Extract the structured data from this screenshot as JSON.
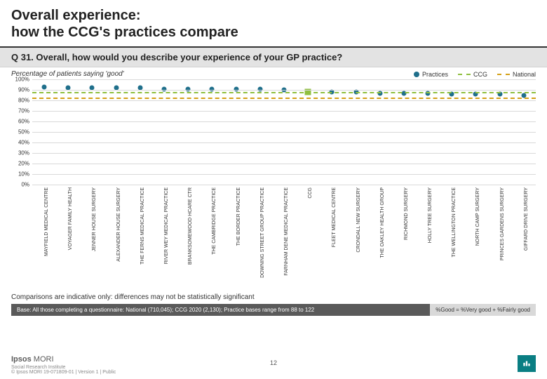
{
  "title": {
    "line1": "Overall experience:",
    "line2": "how the CCG's practices compare"
  },
  "question": "Q 31. Overall, how would you describe your experience of your GP practice?",
  "subheader": "Percentage of patients saying 'good'",
  "legend": {
    "practices": {
      "label": "Practices",
      "color": "#1f6f8b"
    },
    "ccg": {
      "label": "CCG",
      "color": "#8fbf3f"
    },
    "national": {
      "label": "National",
      "color": "#d4a017"
    }
  },
  "chart": {
    "type": "scatter",
    "ylim": [
      0,
      100
    ],
    "ytick_step": 10,
    "yticks": [
      "0%",
      "10%",
      "20%",
      "30%",
      "40%",
      "50%",
      "60%",
      "70%",
      "80%",
      "90%",
      "100%"
    ],
    "grid_color": "#d9d9d9",
    "label_fontsize": 8,
    "xlabel_fontsize": 7,
    "point_color": "#1f6f8b",
    "point_size": 7,
    "ccg_line": {
      "value": 88,
      "color": "#8fbf3f",
      "dash": true,
      "width": 2
    },
    "national_line": {
      "value": 83,
      "color": "#d4a017",
      "dash": true,
      "width": 2
    },
    "ccg_point": {
      "index": 11,
      "value": 88,
      "color": "#8fbf3f",
      "size": 9,
      "shape": "square"
    },
    "categories": [
      "MAYFIELD MEDICAL CENTRE",
      "VOYAGER FAMILY HEALTH",
      "JENNER HOUSE SURGERY",
      "ALEXANDER HOUSE SURGERY",
      "THE FERNS MEDICAL PRACTICE",
      "RIVER WEY MEDICAL PRACTICE",
      "BRANKSOMEWOOD HCARE CTR",
      "THE CAMBRIDGE PRACTICE",
      "THE BORDER PRACTICE",
      "DOWNING STREET GROUP PRACTICE",
      "FARNHAM DENE MEDICAL PRACTICE",
      "CCG",
      "FLEET MEDICAL CENTRE",
      "CRONDALL NEW SURGERY",
      "THE OAKLEY HEALTH GROUP",
      "RICHMOND SURGERY",
      "HOLLY TREE SURGERY",
      "THE WELLINGTON PRACTICE",
      "NORTH CAMP SURGERY",
      "PRINCES GARDENS SURGERY",
      "GIFFARD DRIVE SURGERY"
    ],
    "values": [
      93,
      92,
      92,
      92,
      92,
      91,
      91,
      91,
      91,
      91,
      90,
      88,
      88,
      88,
      87,
      87,
      87,
      86,
      86,
      86,
      85
    ]
  },
  "compare_note": "Comparisons are indicative only: differences may not be statistically significant",
  "base_note": "Base: All those completing a questionnaire: National (710,045); CCG 2020 (2,130); Practice bases range from 88 to 122",
  "good_def": "%Good = %Very good + %Fairly good",
  "footer": {
    "logo1": "Ipsos",
    "logo2": " MORI",
    "logo_sub": "Social Research Institute",
    "copy": "© Ipsos MORI    19-071809-01 | Version 1 | Public",
    "page_number": "12"
  },
  "colors": {
    "title_rule": "#333333",
    "grey_band": "#e3e3e3",
    "dark_grey": "#5a5a5a",
    "teal": "#0a7e83"
  }
}
